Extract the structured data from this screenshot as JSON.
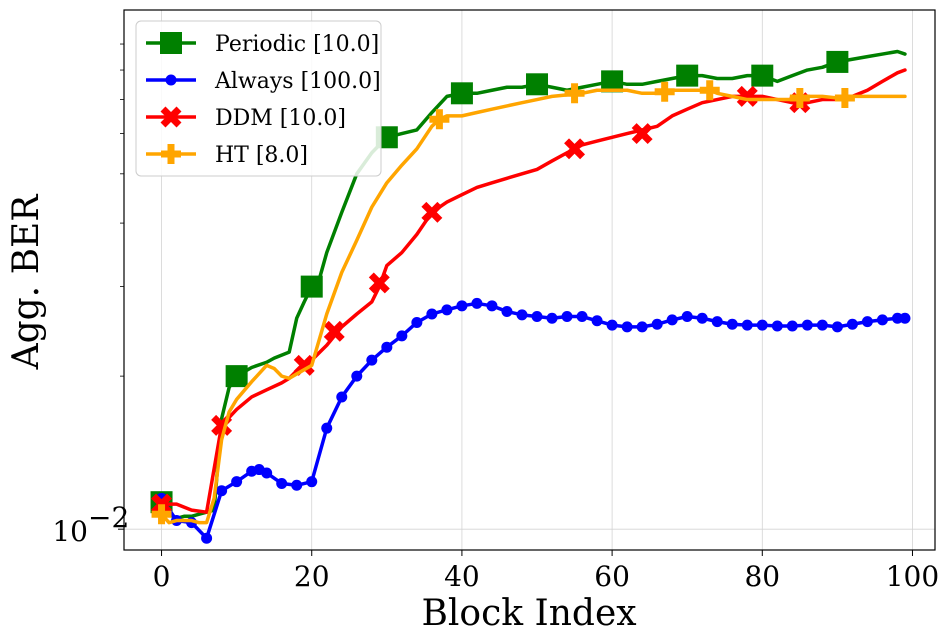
{
  "chart_data": {
    "type": "line",
    "title": "",
    "xlabel": "Block Index",
    "ylabel": "Agg. BER",
    "xlim": [
      -5,
      103
    ],
    "ylim": [
      0.0091,
      0.105
    ],
    "yscale": "log",
    "grid": true,
    "legend_position": "top-left",
    "x_ticks": [
      0,
      20,
      40,
      60,
      80,
      100
    ],
    "x_tick_labels": [
      "0",
      "20",
      "40",
      "60",
      "80",
      "100"
    ],
    "y_major_ticks": [
      0.01
    ],
    "y_major_tick_labels": [
      "10"
    ],
    "y_major_tick_exponents": [
      "−2"
    ],
    "y_minor_ticks": [
      0.02,
      0.03,
      0.04,
      0.05,
      0.06,
      0.07,
      0.08,
      0.09
    ],
    "series": [
      {
        "name": "Periodic [10.0]",
        "color": "#008000",
        "marker": "square",
        "x": [
          0,
          1,
          2,
          3,
          4,
          5,
          6,
          7,
          8,
          9,
          10,
          12,
          14,
          15,
          17,
          18,
          19,
          20,
          21,
          22,
          24,
          26,
          28,
          30,
          32,
          34,
          36,
          38,
          40,
          42,
          44,
          46,
          48,
          50,
          52,
          54,
          56,
          58,
          60,
          62,
          64,
          66,
          68,
          70,
          72,
          74,
          76,
          78,
          80,
          82,
          84,
          86,
          88,
          90,
          92,
          94,
          96,
          98,
          99
        ],
        "values": [
          0.0113,
          0.0107,
          0.0105,
          0.0106,
          0.0106,
          0.0107,
          0.0108,
          0.0109,
          0.0165,
          0.019,
          0.02,
          0.0208,
          0.0213,
          0.0217,
          0.0223,
          0.026,
          0.028,
          0.03,
          0.031,
          0.035,
          0.042,
          0.05,
          0.055,
          0.059,
          0.06,
          0.061,
          0.066,
          0.071,
          0.072,
          0.072,
          0.073,
          0.074,
          0.074,
          0.075,
          0.074,
          0.073,
          0.074,
          0.075,
          0.076,
          0.075,
          0.075,
          0.076,
          0.077,
          0.078,
          0.078,
          0.077,
          0.077,
          0.078,
          0.078,
          0.076,
          0.078,
          0.08,
          0.081,
          0.083,
          0.084,
          0.085,
          0.086,
          0.087,
          0.086
        ],
        "marker_x": [
          0,
          10,
          20,
          30,
          40,
          50,
          60,
          70,
          80,
          90
        ],
        "marker_values": [
          0.0113,
          0.02,
          0.03,
          0.059,
          0.072,
          0.075,
          0.076,
          0.078,
          0.078,
          0.083
        ]
      },
      {
        "name": "Always [100.0]",
        "color": "#0000ff",
        "marker": "circle",
        "x": [
          0,
          2,
          4,
          6,
          8,
          10,
          12,
          13,
          14,
          16,
          18,
          20,
          22,
          24,
          26,
          28,
          30,
          32,
          34,
          36,
          38,
          40,
          42,
          44,
          46,
          48,
          50,
          52,
          54,
          56,
          58,
          60,
          62,
          64,
          66,
          68,
          70,
          72,
          74,
          76,
          78,
          80,
          82,
          84,
          86,
          88,
          90,
          92,
          94,
          96,
          98,
          99
        ],
        "values": [
          0.0115,
          0.0104,
          0.0103,
          0.0096,
          0.0119,
          0.0124,
          0.013,
          0.0131,
          0.0129,
          0.0123,
          0.0122,
          0.0124,
          0.0158,
          0.0182,
          0.02,
          0.0215,
          0.0228,
          0.024,
          0.0255,
          0.0265,
          0.027,
          0.0275,
          0.0278,
          0.0275,
          0.0268,
          0.0264,
          0.0262,
          0.026,
          0.0262,
          0.0262,
          0.0257,
          0.0252,
          0.025,
          0.025,
          0.0253,
          0.0258,
          0.0262,
          0.026,
          0.0256,
          0.0253,
          0.0252,
          0.0252,
          0.0251,
          0.0251,
          0.0252,
          0.0252,
          0.025,
          0.0253,
          0.0256,
          0.0258,
          0.026,
          0.026
        ]
      },
      {
        "name": "DDM [10.0]",
        "color": "#ff0000",
        "marker": "x",
        "x": [
          0,
          2,
          4,
          6,
          8,
          10,
          12,
          14,
          16,
          17,
          18,
          20,
          22,
          24,
          26,
          28,
          29,
          30,
          32,
          34,
          36,
          38,
          40,
          42,
          44,
          46,
          48,
          50,
          52,
          54,
          56,
          58,
          60,
          62,
          64,
          66,
          68,
          70,
          72,
          74,
          76,
          78,
          80,
          82,
          84,
          86,
          88,
          90,
          92,
          94,
          96,
          98,
          99
        ],
        "values": [
          0.0112,
          0.0112,
          0.0109,
          0.0108,
          0.016,
          0.0172,
          0.0182,
          0.0188,
          0.0194,
          0.0198,
          0.0205,
          0.0215,
          0.023,
          0.025,
          0.0265,
          0.028,
          0.03,
          0.033,
          0.035,
          0.038,
          0.042,
          0.044,
          0.0455,
          0.047,
          0.048,
          0.049,
          0.05,
          0.051,
          0.053,
          0.055,
          0.057,
          0.058,
          0.059,
          0.06,
          0.061,
          0.062,
          0.065,
          0.067,
          0.069,
          0.07,
          0.071,
          0.071,
          0.071,
          0.07,
          0.069,
          0.069,
          0.07,
          0.07,
          0.071,
          0.073,
          0.076,
          0.079,
          0.08
        ],
        "marker_x": [
          0,
          8,
          19,
          23,
          29,
          36,
          55,
          64,
          78,
          85
        ],
        "marker_values": [
          0.0112,
          0.016,
          0.021,
          0.0245,
          0.0305,
          0.042,
          0.056,
          0.06,
          0.071,
          0.069
        ]
      },
      {
        "name": "HT [8.0]",
        "color": "#ffa500",
        "marker": "plus",
        "x": [
          0,
          1,
          2,
          3,
          4,
          5,
          6,
          7,
          8,
          9,
          10,
          12,
          14,
          15,
          16,
          17,
          18,
          20,
          22,
          24,
          26,
          28,
          30,
          32,
          34,
          36,
          37,
          38,
          40,
          42,
          44,
          46,
          48,
          50,
          52,
          54,
          55,
          56,
          58,
          60,
          62,
          64,
          66,
          67,
          68,
          70,
          72,
          73,
          74,
          76,
          78,
          80,
          82,
          84,
          85,
          86,
          88,
          90,
          91,
          92,
          94,
          96,
          98,
          99
        ],
        "values": [
          0.0107,
          0.0103,
          0.0104,
          0.0104,
          0.0104,
          0.0103,
          0.0103,
          0.0115,
          0.015,
          0.017,
          0.018,
          0.0195,
          0.021,
          0.0207,
          0.02,
          0.0198,
          0.0202,
          0.021,
          0.0265,
          0.032,
          0.037,
          0.043,
          0.048,
          0.052,
          0.056,
          0.062,
          0.064,
          0.065,
          0.065,
          0.066,
          0.067,
          0.068,
          0.069,
          0.07,
          0.071,
          0.0715,
          0.072,
          0.072,
          0.073,
          0.073,
          0.073,
          0.072,
          0.072,
          0.0725,
          0.073,
          0.073,
          0.073,
          0.073,
          0.072,
          0.071,
          0.07,
          0.07,
          0.07,
          0.07,
          0.0705,
          0.071,
          0.071,
          0.0705,
          0.0705,
          0.071,
          0.071,
          0.071,
          0.071,
          0.071
        ],
        "marker_x": [
          0,
          37,
          55,
          67,
          73,
          85,
          91
        ],
        "marker_values": [
          0.0107,
          0.064,
          0.072,
          0.0725,
          0.073,
          0.0705,
          0.0705
        ]
      }
    ]
  }
}
